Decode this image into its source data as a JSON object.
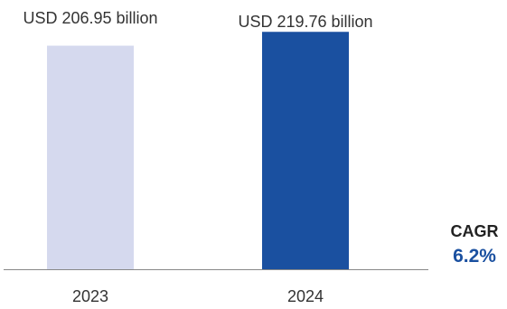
{
  "chart_data": {
    "type": "bar",
    "categories": [
      "2023",
      "2024"
    ],
    "values": [
      206.95,
      219.76
    ],
    "data_labels": [
      "USD 206.95 billion",
      "USD 219.76 billion"
    ],
    "title": "",
    "xlabel": "",
    "ylabel": "",
    "ylim": [
      0,
      230
    ],
    "grid": false,
    "legend": "none",
    "colors": [
      "#d5d9ee",
      "#1a50a0"
    ],
    "axis_color": "#888888",
    "annotation": {
      "label": "CAGR",
      "value": "6.2%",
      "value_color": "#1a50a0"
    }
  }
}
